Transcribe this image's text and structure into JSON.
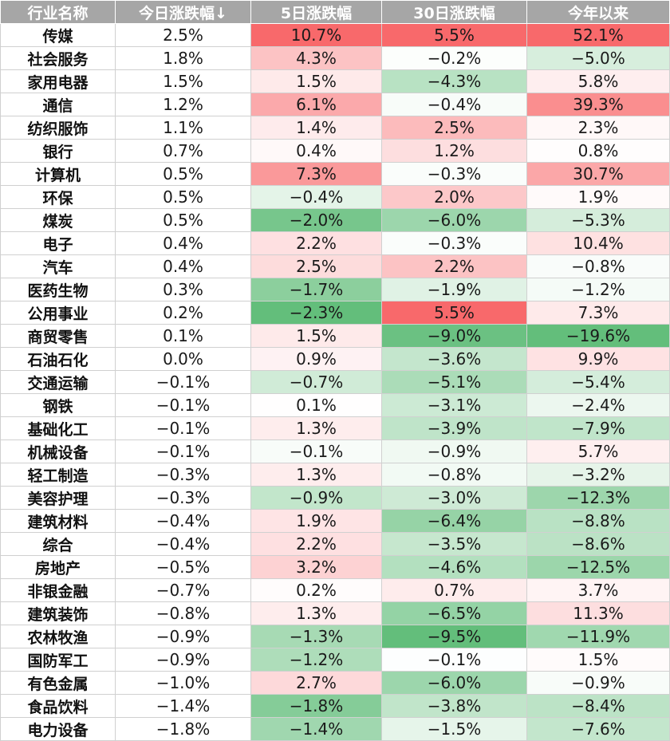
{
  "chart_data": {
    "type": "table",
    "columns": [
      "行业名称",
      "今日涨跌幅↓",
      "5日涨跌幅",
      "30日涨跌幅",
      "今年以来"
    ],
    "rows": [
      [
        "传媒",
        "2.5%",
        "10.7%",
        "5.5%",
        "52.1%"
      ],
      [
        "社会服务",
        "1.8%",
        "4.3%",
        "−0.2%",
        "−5.0%"
      ],
      [
        "家用电器",
        "1.5%",
        "1.5%",
        "−4.3%",
        "5.8%"
      ],
      [
        "通信",
        "1.2%",
        "6.1%",
        "−0.4%",
        "39.3%"
      ],
      [
        "纺织服饰",
        "1.1%",
        "1.4%",
        "2.5%",
        "2.3%"
      ],
      [
        "银行",
        "0.7%",
        "0.4%",
        "1.2%",
        "0.8%"
      ],
      [
        "计算机",
        "0.5%",
        "7.3%",
        "−0.3%",
        "30.7%"
      ],
      [
        "环保",
        "0.5%",
        "−0.4%",
        "2.0%",
        "1.9%"
      ],
      [
        "煤炭",
        "0.5%",
        "−2.0%",
        "−6.0%",
        "−5.3%"
      ],
      [
        "电子",
        "0.4%",
        "2.2%",
        "−0.3%",
        "10.4%"
      ],
      [
        "汽车",
        "0.4%",
        "2.5%",
        "2.2%",
        "−0.8%"
      ],
      [
        "医药生物",
        "0.3%",
        "−1.7%",
        "−1.9%",
        "−1.2%"
      ],
      [
        "公用事业",
        "0.2%",
        "−2.3%",
        "5.5%",
        "7.3%"
      ],
      [
        "商贸零售",
        "0.1%",
        "1.5%",
        "−9.0%",
        "−19.6%"
      ],
      [
        "石油石化",
        "0.0%",
        "0.9%",
        "−3.6%",
        "9.9%"
      ],
      [
        "交通运输",
        "−0.1%",
        "−0.7%",
        "−5.1%",
        "−5.4%"
      ],
      [
        "钢铁",
        "−0.1%",
        "0.1%",
        "−3.1%",
        "−2.4%"
      ],
      [
        "基础化工",
        "−0.1%",
        "1.3%",
        "−3.9%",
        "−7.9%"
      ],
      [
        "机械设备",
        "−0.1%",
        "−0.1%",
        "−0.9%",
        "5.7%"
      ],
      [
        "轻工制造",
        "−0.3%",
        "1.3%",
        "−0.8%",
        "−3.2%"
      ],
      [
        "美容护理",
        "−0.3%",
        "−0.9%",
        "−3.0%",
        "−12.3%"
      ],
      [
        "建筑材料",
        "−0.4%",
        "1.9%",
        "−6.4%",
        "−8.8%"
      ],
      [
        "综合",
        "−0.4%",
        "2.2%",
        "−3.5%",
        "−8.6%"
      ],
      [
        "房地产",
        "−0.5%",
        "3.2%",
        "−4.6%",
        "−12.5%"
      ],
      [
        "非银金融",
        "−0.7%",
        "0.2%",
        "0.7%",
        "3.7%"
      ],
      [
        "建筑装饰",
        "−0.8%",
        "1.3%",
        "−6.5%",
        "11.3%"
      ],
      [
        "农林牧渔",
        "−0.9%",
        "−1.3%",
        "−9.5%",
        "−11.9%"
      ],
      [
        "国防军工",
        "−0.9%",
        "−1.2%",
        "−0.1%",
        "1.5%"
      ],
      [
        "有色金属",
        "−1.0%",
        "2.7%",
        "−6.0%",
        "−0.9%"
      ],
      [
        "食品饮料",
        "−1.4%",
        "−1.8%",
        "−3.8%",
        "−8.4%"
      ],
      [
        "电力设备",
        "−1.8%",
        "−1.4%",
        "−1.5%",
        "−7.6%"
      ]
    ],
    "color_scale": {
      "type": "diverging",
      "positive_color": "#f8696b",
      "negative_color": "#63be7b",
      "neutral_color": "#ffffff",
      "header_bg": "#a6a6a6"
    }
  }
}
